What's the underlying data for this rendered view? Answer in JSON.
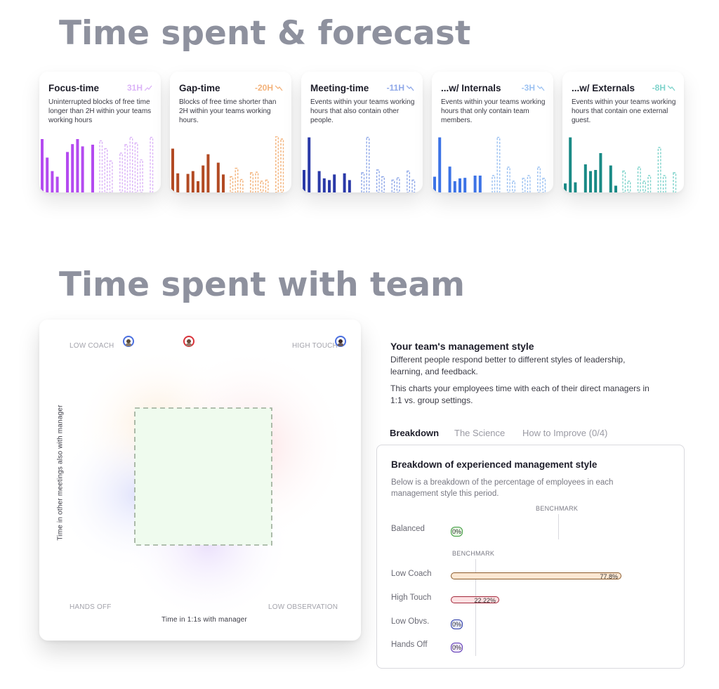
{
  "sections": {
    "forecast_title": "Time spent & forecast",
    "team_title": "Time spent with team"
  },
  "cards": [
    {
      "title": "Focus-time",
      "delta": "31H",
      "trend": "up",
      "color": "#b44bf0",
      "light": "#dbb3f7",
      "desc": "Uninterrupted blocks of free time longer than 2H within your teams working hours",
      "solid": [
        0.95,
        0.62,
        0.38,
        0.28,
        0,
        0.72,
        0.86,
        0.95,
        0.82,
        0,
        0.85
      ],
      "dashed": [
        0.92,
        0.78,
        0.56,
        0,
        0.7,
        0.85,
        0.98,
        0.88,
        0.58,
        0,
        0.98
      ]
    },
    {
      "title": "Gap-time",
      "delta": "-20H",
      "trend": "down",
      "color": "#b24a23",
      "light": "#f3b27a",
      "desc": "Blocks of free time shorter than 2H within your teams working hours.",
      "solid": [
        0.78,
        0.34,
        0,
        0.33,
        0.38,
        0.2,
        0.48,
        0.68,
        0,
        0.53,
        0.32
      ],
      "dashed": [
        0.28,
        0.43,
        0.23,
        0,
        0.35,
        0.36,
        0.2,
        0.22,
        0,
        1.0,
        0.95
      ]
    },
    {
      "title": "Meeting-time",
      "delta": "-11H",
      "trend": "down",
      "color": "#2b3aa8",
      "light": "#8fa8e8",
      "desc": "Events within your teams working hours that also contain other people.",
      "solid": [
        0.4,
        0.98,
        0,
        0.38,
        0.25,
        0.22,
        0.32,
        0,
        0.34,
        0.22,
        0
      ],
      "dashed": [
        0.35,
        0.98,
        0,
        0.4,
        0.28,
        0,
        0.22,
        0.26,
        0,
        0.38,
        0.22
      ]
    },
    {
      "title": "...w/ Internals",
      "delta": "-3H",
      "trend": "down",
      "color": "#3c73e6",
      "light": "#9cc2f2",
      "desc": "Events within your teams working hours that only contain team members.",
      "solid": [
        0.28,
        0.98,
        0,
        0.46,
        0.2,
        0.25,
        0.26,
        0,
        0.3,
        0.3,
        0
      ],
      "dashed": [
        0.3,
        0.98,
        0,
        0.45,
        0.2,
        0,
        0.25,
        0.3,
        0,
        0.45,
        0.25
      ]
    },
    {
      "title": "...w/ Externals",
      "delta": "-8H",
      "trend": "down",
      "color": "#1a8a86",
      "light": "#7ed3cb",
      "desc": "Events within your teams working hours that contain one external guest.",
      "solid": [
        0.16,
        0.98,
        0.18,
        0,
        0.5,
        0.38,
        0.4,
        0.7,
        0,
        0.48,
        0.12
      ],
      "dashed": [
        0.38,
        0.2,
        0,
        0.45,
        0.2,
        0.3,
        0,
        0.8,
        0.3,
        0,
        0.35
      ]
    }
  ],
  "quadrant": {
    "low_coach": "LOW COACH",
    "high_touch": "HIGH TOUCH",
    "hands_off": "HANDS OFF",
    "low_observation": "LOW OBSERVATION",
    "x_axis": "Time in 1:1s with manager",
    "y_axis": "Time in other meetings also with manager"
  },
  "style": {
    "title": "Your team's management style",
    "desc1": "Different people respond better to different styles of leadership, learning, and feedback.",
    "desc2": "This charts your employees time with each of their direct managers in 1:1 vs. group settings."
  },
  "tabs": [
    {
      "label": "Breakdown",
      "active": true
    },
    {
      "label": "The Science",
      "active": false
    },
    {
      "label": "How to Improve (0/4)",
      "active": false
    }
  ],
  "breakdown": {
    "title": "Breakdown of experienced management style",
    "desc": "Below is a breakdown of the percentage of employees in each management style this period.",
    "benchmark_label": "BENCHMARK",
    "rows": [
      {
        "label": "Balanced",
        "value": "0%",
        "pct": 0,
        "color": "#3c9a3c",
        "fill": "#e6f6e3"
      },
      {
        "label": "Low Coach",
        "value": "77.8%",
        "pct": 77.8,
        "color": "#8a5a2a",
        "fill": "#fde7d2"
      },
      {
        "label": "High Touch",
        "value": "22.22%",
        "pct": 22.22,
        "color": "#a3273a",
        "fill": "#fde1e3"
      },
      {
        "label": "Low Obvs.",
        "value": "0%",
        "pct": 0,
        "color": "#2b3aa8",
        "fill": "#e6e9fb"
      },
      {
        "label": "Hands Off",
        "value": "0%",
        "pct": 0,
        "color": "#5b36b3",
        "fill": "#efe6fb"
      }
    ]
  }
}
